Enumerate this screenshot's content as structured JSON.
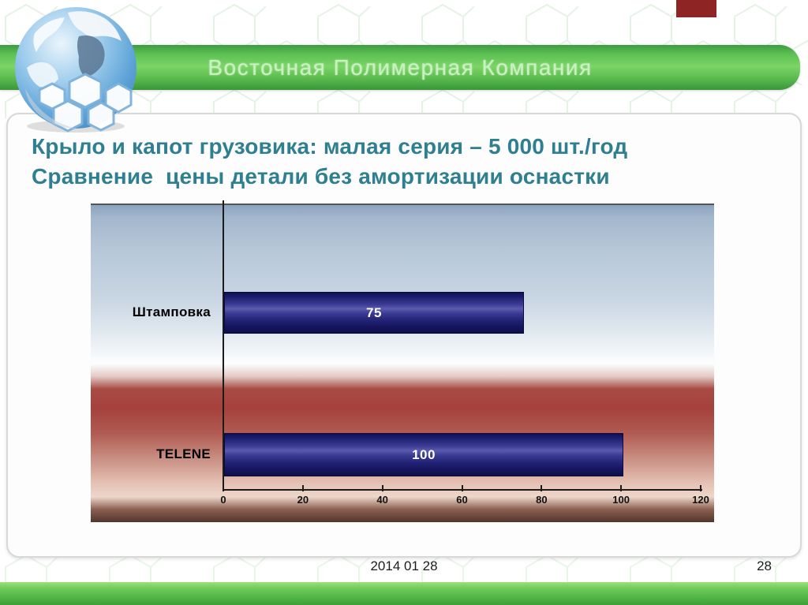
{
  "header": {
    "company_name": "Восточная Полимерная Компания",
    "logo": "globe-icon"
  },
  "title": {
    "line1": "Крыло и капот грузовика: малая серия – 5 000 шт./год",
    "line2": "Сравнение  цены детали без амортизации оснастки"
  },
  "chart_data": {
    "type": "bar",
    "orientation": "horizontal",
    "categories": [
      "Штамповка",
      "TELENE"
    ],
    "values": [
      75,
      100
    ],
    "bar_labels": [
      "75",
      "100"
    ],
    "x_ticks": [
      0,
      20,
      40,
      60,
      80,
      100,
      120
    ],
    "xlim": [
      0,
      120
    ],
    "title": "",
    "xlabel": "",
    "ylabel": "",
    "legend": "none",
    "grid": "off",
    "value_label_position": "inside-center",
    "bar_color": "#1C1C6E",
    "plot_background_top_half": "blue gradient behind Штамповка row",
    "plot_background_bottom_half": "red gradient behind TELENE row"
  },
  "footer": {
    "date": "2014 01 28",
    "page": "28"
  },
  "colors": {
    "banner_green": "#5FC254",
    "title_teal": "#2E8090",
    "bar_navy": "#1C1C6E",
    "chart_blue_bg": "#A3B7CC",
    "chart_red_bg": "#A6413D",
    "red_marker": "#8E2424",
    "bottom_bar_green": "#4FB344"
  }
}
